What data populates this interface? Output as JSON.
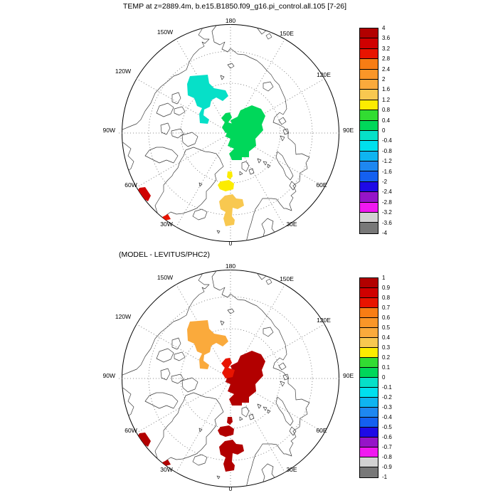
{
  "title": "TEMP at z=2889.4m, b.e15.B1850.f09_g16.pi_control.all.105 [7-26]",
  "panels": [
    {
      "label": "",
      "patches": [
        {
          "name": "canada-basin-blob",
          "color": "#06E0C8",
          "value_range": "0 to -0.4"
        },
        {
          "name": "central-arctic-blob",
          "color": "#00D75A",
          "value_range": "0 to 0.4"
        },
        {
          "name": "central-small-blob",
          "color": "#00D75A",
          "value_range": "0 to 0.4"
        },
        {
          "name": "fram-spot-small",
          "color": "#FCEC00",
          "value_range": "0.8 to 1.2"
        },
        {
          "name": "fram-spot",
          "color": "#FCEC00",
          "value_range": "0.8 to 1.2"
        },
        {
          "name": "norwegian-sea-blob",
          "color": "#F8C850",
          "value_range": "1.2 to 1.6"
        },
        {
          "name": "labrador-edge-blob",
          "color": "#D00000",
          "value_range": "3.2 to 4"
        },
        {
          "name": "se-greenland-spot",
          "color": "#E81400",
          "value_range": "2.8 to 3.2"
        }
      ],
      "colorbar_ticks": [
        "4",
        "3.6",
        "3.2",
        "2.8",
        "2.4",
        "2",
        "1.6",
        "1.2",
        "0.8",
        "0.4",
        "0",
        "-0.4",
        "-0.8",
        "-1.2",
        "-1.6",
        "-2",
        "-2.4",
        "-2.8",
        "-3.2",
        "-3.6",
        "-4"
      ]
    },
    {
      "label": "(MODEL - LEVITUS/PHC2)",
      "patches": [
        {
          "name": "canada-basin-blob",
          "color": "#FAAA3C",
          "value_range": "0.4 to 0.5"
        },
        {
          "name": "central-arctic-blob",
          "color": "#B20000",
          "value_range": "0.9 to 1"
        },
        {
          "name": "central-small-blob",
          "color": "#E81400",
          "value_range": "0.7 to 0.8"
        },
        {
          "name": "fram-spot-small",
          "color": "#B20000",
          "value_range": "0.9 to 1"
        },
        {
          "name": "fram-spot",
          "color": "#B20000",
          "value_range": "0.9 to 1"
        },
        {
          "name": "norwegian-sea-blob",
          "color": "#B20000",
          "value_range": "0.9 to 1"
        },
        {
          "name": "labrador-edge-blob",
          "color": "#B20000",
          "value_range": "0.9 to 1"
        },
        {
          "name": "se-greenland-spot",
          "color": "#B20000",
          "value_range": "0.9 to 1"
        }
      ],
      "colorbar_ticks": [
        "1",
        "0.9",
        "0.8",
        "0.7",
        "0.6",
        "0.5",
        "0.4",
        "0.3",
        "0.2",
        "0.1",
        "0",
        "-0.1",
        "-0.2",
        "-0.3",
        "-0.4",
        "-0.5",
        "-0.6",
        "-0.7",
        "-0.8",
        "-0.9",
        "-1"
      ]
    }
  ],
  "ring_labels": [
    "180",
    "150E",
    "120E",
    "90E",
    "60E",
    "30E",
    "0",
    "30W",
    "60W",
    "90W",
    "120W",
    "150W"
  ],
  "palette": [
    "#B20000",
    "#D00000",
    "#E81400",
    "#F87D14",
    "#FA9628",
    "#FAAA3C",
    "#F8C850",
    "#FCEC00",
    "#32DC32",
    "#00D75A",
    "#06E0C8",
    "#00E0EE",
    "#0FB4F0",
    "#1E87F0",
    "#1460F0",
    "#1E0AE6",
    "#9614C8",
    "#F018F0",
    "#D2D2D2",
    "#787878"
  ],
  "chart_data": [
    {
      "type": "heatmap",
      "title": "TEMP at z=2889.4m, b.e15.B1850.f09_g16.pi_control.all.105 [7-26]",
      "projection": "north polar stereographic, 180 at top, 0 at bottom",
      "legend_position": "right",
      "colorbar_range": [
        -4,
        4
      ],
      "colorbar_step": 0.4,
      "colorbar_ticks": [
        4,
        3.6,
        3.2,
        2.8,
        2.4,
        2,
        1.6,
        1.2,
        0.8,
        0.4,
        0,
        -0.4,
        -0.8,
        -1.2,
        -1.6,
        -2,
        -2.4,
        -2.8,
        -3.2,
        -3.6,
        -4
      ],
      "grid": "dotted meridians every 30 deg, two dotted latitude circles",
      "anomaly_regions": [
        {
          "location": "Canada Basin (upper-left of pole)",
          "value_range": [
            -0.4,
            0
          ]
        },
        {
          "location": "central Arctic toward Laptev side",
          "value_range": [
            0,
            0.4
          ]
        },
        {
          "location": "north of Fram Strait (small spots)",
          "value_range": [
            0.8,
            1.2
          ]
        },
        {
          "location": "Norwegian Sea",
          "value_range": [
            1.2,
            1.6
          ]
        },
        {
          "location": "Labrador Sea at 60W edge",
          "value_range": [
            3.2,
            4
          ]
        },
        {
          "location": "southeast Greenland coast near 30W",
          "value_range": [
            2.8,
            3.2
          ]
        }
      ]
    },
    {
      "type": "heatmap",
      "title": "(MODEL - LEVITUS/PHC2)",
      "projection": "north polar stereographic, 180 at top, 0 at bottom",
      "legend_position": "right",
      "colorbar_range": [
        -1,
        1
      ],
      "colorbar_step": 0.1,
      "colorbar_ticks": [
        1,
        0.9,
        0.8,
        0.7,
        0.6,
        0.5,
        0.4,
        0.3,
        0.2,
        0.1,
        0,
        -0.1,
        -0.2,
        -0.3,
        -0.4,
        -0.5,
        -0.6,
        -0.7,
        -0.8,
        -0.9,
        -1
      ],
      "grid": "dotted meridians every 30 deg, two dotted latitude circles",
      "anomaly_regions": [
        {
          "location": "Canada Basin (upper-left of pole)",
          "value_range": [
            0.4,
            0.5
          ]
        },
        {
          "location": "central Arctic toward Laptev side",
          "value_range": [
            0.9,
            1
          ]
        },
        {
          "location": "small blob west of central patch",
          "value_range": [
            0.7,
            0.8
          ]
        },
        {
          "location": "north of Fram Strait (small spots)",
          "value_range": [
            0.9,
            1
          ]
        },
        {
          "location": "Norwegian Sea",
          "value_range": [
            0.9,
            1
          ]
        },
        {
          "location": "Labrador Sea at 60W edge",
          "value_range": [
            0.9,
            1
          ]
        },
        {
          "location": "southeast Greenland coast near 30W",
          "value_range": [
            0.9,
            1
          ]
        }
      ]
    }
  ]
}
